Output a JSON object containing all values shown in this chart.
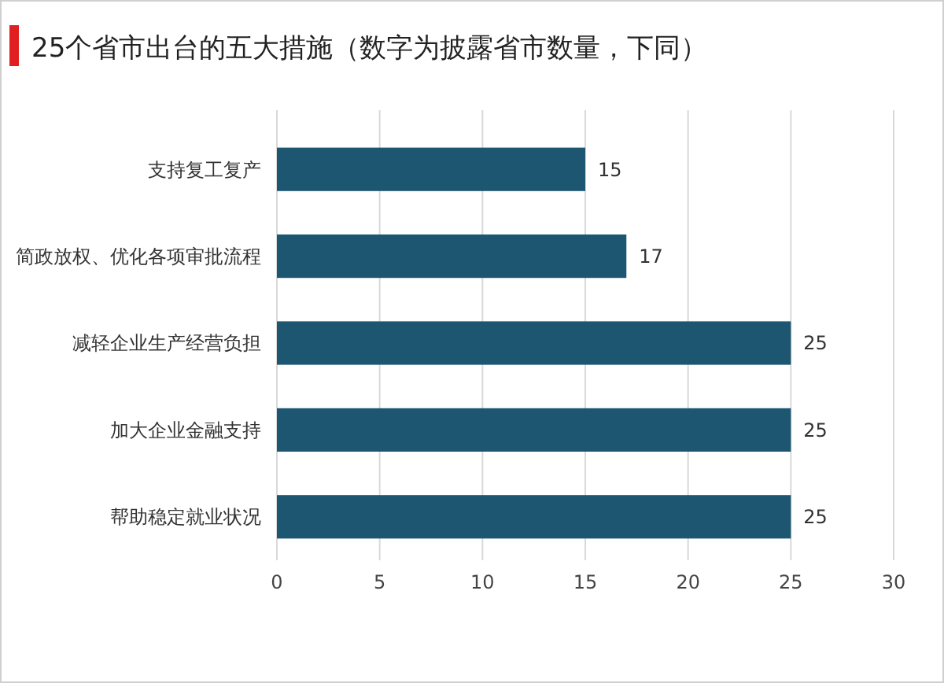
{
  "chart_data": {
    "type": "bar",
    "orientation": "horizontal",
    "title": "25个省市出台的五大措施（数字为披露省市数量，下同）",
    "categories": [
      "支持复工复产",
      "简政放权、优化各项审批流程",
      "减轻企业生产经营负担",
      "加大企业金融支持",
      "帮助稳定就业状况"
    ],
    "values": [
      15,
      17,
      25,
      25,
      25
    ],
    "color": "#1d5671",
    "xlim": [
      0,
      30
    ],
    "xticks": [
      0,
      5,
      10,
      15,
      20,
      25,
      30
    ],
    "grid": "x",
    "data_labels": true
  }
}
